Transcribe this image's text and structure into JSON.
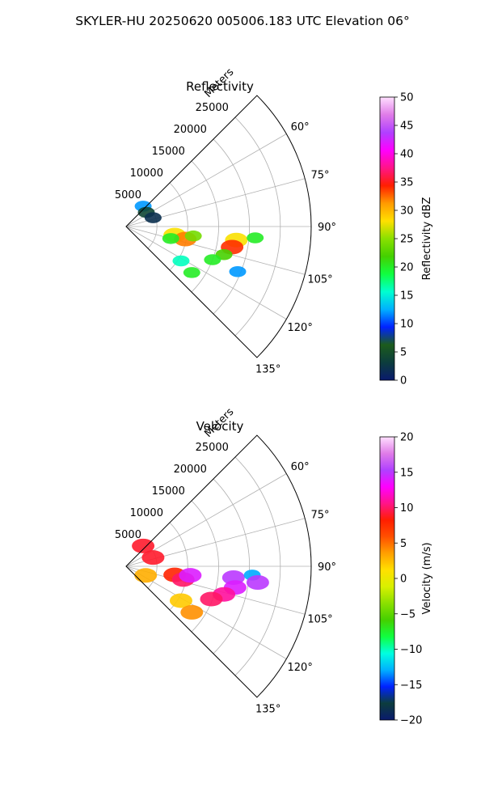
{
  "figure": {
    "suptitle": "SKYLER-HU  20250620  005006.183 UTC Elevation 06°"
  },
  "chart_data": [
    {
      "type": "polar-sector",
      "title": "Reflectivity",
      "radial_label": "Meters",
      "radial_ticks": [
        "5000",
        "10000",
        "15000",
        "20000",
        "25000"
      ],
      "angle_ticks": [
        "60°",
        "75°",
        "90°",
        "105°",
        "120°",
        "135°"
      ],
      "azimuth_range_deg": [
        45,
        135
      ],
      "radial_range_m": [
        0,
        30000
      ],
      "grid": true,
      "colorbar": {
        "label": "Reflectivity dBZ",
        "vmin": 0,
        "vmax": 50,
        "ticks": [
          "0",
          "5",
          "10",
          "15",
          "20",
          "25",
          "30",
          "35",
          "40",
          "45",
          "50"
        ],
        "stops": [
          "#0a1a6e",
          "#0c3d3d",
          "#1c5c1c",
          "#0022ff",
          "#00b0ff",
          "#00ffd0",
          "#10ff40",
          "#44d000",
          "#8ae000",
          "#ffe000",
          "#ff9a00",
          "#ff1e00",
          "#ff1488",
          "#ff00ff",
          "#b040ff",
          "#e07ce8",
          "#ffe0ff"
        ]
      },
      "echoes": [
        {
          "az": 40,
          "r": 4300,
          "value": 12
        },
        {
          "az": 55,
          "r": 4000,
          "value": 4
        },
        {
          "az": 72,
          "r": 4600,
          "value": 2
        },
        {
          "az": 100,
          "r": 8000,
          "value": 28
        },
        {
          "az": 102,
          "r": 9800,
          "value": 32
        },
        {
          "az": 105,
          "r": 7500,
          "value": 20
        },
        {
          "az": 98,
          "r": 11000,
          "value": 24
        },
        {
          "az": 97,
          "r": 18000,
          "value": 28
        },
        {
          "az": 101,
          "r": 17500,
          "value": 34
        },
        {
          "az": 95,
          "r": 21000,
          "value": 20
        },
        {
          "az": 106,
          "r": 16500,
          "value": 22
        },
        {
          "az": 111,
          "r": 15000,
          "value": 20
        },
        {
          "az": 122,
          "r": 10500,
          "value": 16
        },
        {
          "az": 125,
          "r": 13000,
          "value": 20
        },
        {
          "az": 112,
          "r": 19500,
          "value": 12
        }
      ]
    },
    {
      "type": "polar-sector",
      "title": "Velocity",
      "radial_label": "Meters",
      "radial_ticks": [
        "5000",
        "10000",
        "15000",
        "20000",
        "25000"
      ],
      "angle_ticks": [
        "60°",
        "75°",
        "90°",
        "105°",
        "120°",
        "135°"
      ],
      "azimuth_range_deg": [
        45,
        135
      ],
      "radial_range_m": [
        0,
        30000
      ],
      "grid": true,
      "colorbar": {
        "label": "Velocity (m/s)",
        "vmin": -20,
        "vmax": 20,
        "ticks": [
          "−20",
          "−15",
          "−10",
          "−5",
          "0",
          "5",
          "10",
          "15",
          "20"
        ],
        "stops": [
          "#0a1a6e",
          "#0c3d3d",
          "#0022ff",
          "#00b0ff",
          "#00ffe0",
          "#10ff40",
          "#44d000",
          "#8ae000",
          "#d8f000",
          "#ffe000",
          "#ffa000",
          "#ff5000",
          "#ff1e00",
          "#ff1488",
          "#ff00ff",
          "#b040ff",
          "#e07ce8",
          "#ffe0ff"
        ]
      },
      "echoes": [
        {
          "az": 40,
          "r": 4300,
          "value": 9
        },
        {
          "az": 72,
          "r": 4600,
          "value": 9
        },
        {
          "az": 100,
          "r": 8000,
          "value": 8
        },
        {
          "az": 103,
          "r": 9500,
          "value": 10
        },
        {
          "az": 98,
          "r": 10500,
          "value": 14
        },
        {
          "az": 96,
          "r": 17500,
          "value": 15
        },
        {
          "az": 101,
          "r": 18000,
          "value": 14
        },
        {
          "az": 94,
          "r": 20500,
          "value": -13
        },
        {
          "az": 97,
          "r": 21500,
          "value": 15
        },
        {
          "az": 106,
          "r": 16500,
          "value": 11
        },
        {
          "az": 111,
          "r": 14800,
          "value": 10
        },
        {
          "az": 122,
          "r": 10500,
          "value": 2
        },
        {
          "az": 125,
          "r": 13000,
          "value": 4
        },
        {
          "az": 115,
          "r": 3500,
          "value": 3
        }
      ]
    }
  ]
}
